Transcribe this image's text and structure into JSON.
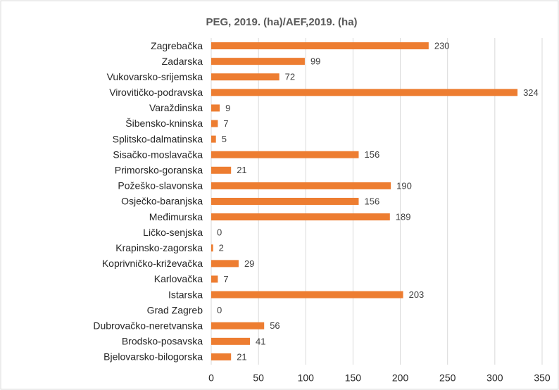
{
  "chart_data": {
    "type": "barh",
    "title": "PEG, 2019. (ha)/AEF,2019. (ha)",
    "categories": [
      "Zagrebačka",
      "Zadarska",
      "Vukovarsko-srijemska",
      "Virovitičko-podravska",
      "Varaždinska",
      "Šibensko-kninska",
      "Splitsko-dalmatinska",
      "Sisačko-moslavačka",
      "Primorsko-goranska",
      "Požeško-slavonska",
      "Osječko-baranjska",
      "Međimurska",
      "Ličko-senjska",
      "Krapinsko-zagorska",
      "Koprivničko-križevačka",
      "Karlovačka",
      "Istarska",
      "Grad Zagreb",
      "Dubrovačko-neretvanska",
      "Brodsko-posavska",
      "Bjelovarsko-bilogorska"
    ],
    "values": [
      230,
      99,
      72,
      324,
      9,
      7,
      5,
      156,
      21,
      190,
      156,
      189,
      0,
      2,
      29,
      7,
      203,
      0,
      56,
      41,
      21
    ],
    "color": "#ed7d31",
    "xlim": [
      0,
      350
    ],
    "xticks": [
      0,
      50,
      100,
      150,
      200,
      250,
      300,
      350
    ],
    "grid": true
  }
}
